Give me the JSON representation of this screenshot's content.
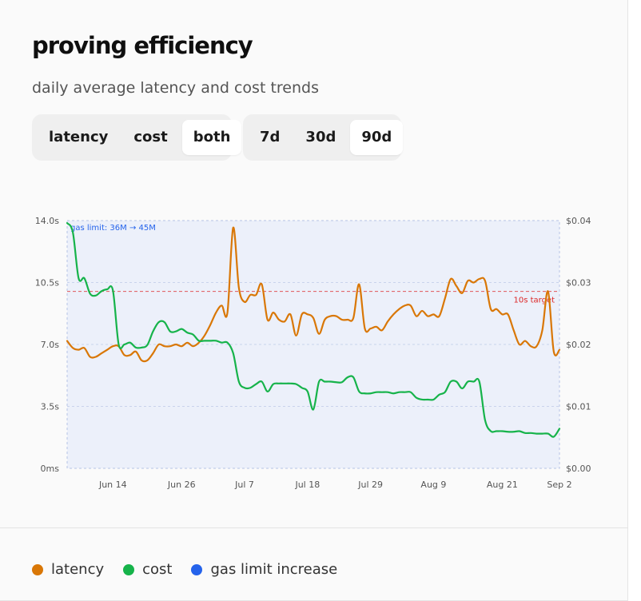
{
  "header": {
    "title": "proving efficiency",
    "subtitle": "daily average latency and cost trends"
  },
  "view_toggle": {
    "options": [
      "latency",
      "cost",
      "both"
    ],
    "selected": "both"
  },
  "range_toggle": {
    "options": [
      "7d",
      "30d",
      "90d"
    ],
    "selected": "90d"
  },
  "colors": {
    "latency": "#d97706",
    "cost": "#16b34a",
    "gas_limit_increase": "#2563eb",
    "target_line": "#dc2626",
    "plot_bg": "#ecf0fa"
  },
  "legend": [
    {
      "key": "latency",
      "label": "latency",
      "color": "#d97706"
    },
    {
      "key": "cost",
      "label": "cost",
      "color": "#16b34a"
    },
    {
      "key": "gas_limit_increase",
      "label": "gas limit increase",
      "color": "#2563eb"
    }
  ],
  "chart_data": {
    "type": "line",
    "x_start": "Jun 6",
    "x_end": "Sep 2",
    "x_ticks": [
      "Jun 14",
      "Jun 26",
      "Jul 7",
      "Jul 18",
      "Jul 29",
      "Aug 9",
      "Aug 21",
      "Sep 2"
    ],
    "y_left": {
      "ylim": [
        0,
        14
      ],
      "ticks": [
        0,
        3.5,
        7,
        10.5,
        14
      ],
      "tick_labels": [
        "0ms",
        "3.5s",
        "7.0s",
        "10.5s",
        "14.0s"
      ]
    },
    "y_right": {
      "ylim": [
        0,
        0.04
      ],
      "ticks": [
        0,
        0.01,
        0.02,
        0.03,
        0.04
      ],
      "tick_labels": [
        "$0.00",
        "$0.01",
        "$0.02",
        "$0.03",
        "$0.04"
      ]
    },
    "target": {
      "value": 10,
      "label": "10s target"
    },
    "annotation": {
      "label": "gas limit: 36M → 45M",
      "start": "Jun 6",
      "end": "Sep 2"
    },
    "grid": true,
    "series": [
      {
        "name": "latency",
        "axis": "left",
        "unit": "s",
        "values": [
          7.2,
          6.8,
          6.7,
          6.8,
          6.3,
          6.3,
          6.5,
          6.7,
          6.9,
          6.9,
          6.4,
          6.4,
          6.6,
          6.1,
          6.1,
          6.5,
          7.0,
          6.9,
          6.9,
          7.0,
          6.9,
          7.1,
          6.9,
          7.1,
          7.5,
          8.1,
          8.8,
          9.2,
          8.8,
          13.6,
          10.2,
          9.4,
          9.8,
          9.8,
          10.4,
          8.4,
          8.8,
          8.4,
          8.3,
          8.7,
          7.5,
          8.7,
          8.7,
          8.5,
          7.6,
          8.4,
          8.6,
          8.6,
          8.4,
          8.4,
          8.5,
          10.4,
          7.9,
          7.9,
          8.0,
          7.8,
          8.3,
          8.7,
          9.0,
          9.2,
          9.2,
          8.6,
          8.9,
          8.6,
          8.7,
          8.6,
          9.6,
          10.7,
          10.3,
          9.9,
          10.6,
          10.5,
          10.7,
          10.6,
          9.0,
          9.0,
          8.7,
          8.7,
          7.8,
          7.0,
          7.2,
          6.9,
          6.9,
          7.8,
          10.0,
          6.6,
          6.7
        ]
      },
      {
        "name": "cost",
        "axis": "right",
        "unit": "$",
        "values": [
          0.0396,
          0.0381,
          0.0307,
          0.0307,
          0.0282,
          0.0279,
          0.0286,
          0.0289,
          0.0287,
          0.02,
          0.02,
          0.0203,
          0.0195,
          0.0195,
          0.0199,
          0.0221,
          0.0236,
          0.0236,
          0.0221,
          0.0221,
          0.0225,
          0.0219,
          0.0216,
          0.0206,
          0.0206,
          0.0206,
          0.0206,
          0.0203,
          0.0203,
          0.0186,
          0.014,
          0.013,
          0.013,
          0.0136,
          0.014,
          0.0124,
          0.0136,
          0.0137,
          0.0137,
          0.0137,
          0.0136,
          0.013,
          0.0124,
          0.0095,
          0.014,
          0.014,
          0.014,
          0.0139,
          0.0139,
          0.0147,
          0.0147,
          0.0124,
          0.0121,
          0.0121,
          0.0123,
          0.0123,
          0.0123,
          0.0121,
          0.0123,
          0.0123,
          0.0123,
          0.0114,
          0.0111,
          0.0111,
          0.0111,
          0.0119,
          0.0123,
          0.014,
          0.014,
          0.0129,
          0.014,
          0.014,
          0.014,
          0.0078,
          0.006,
          0.006,
          0.006,
          0.0059,
          0.0059,
          0.006,
          0.0057,
          0.0057,
          0.0056,
          0.0056,
          0.0056,
          0.0051,
          0.0064
        ]
      }
    ]
  }
}
